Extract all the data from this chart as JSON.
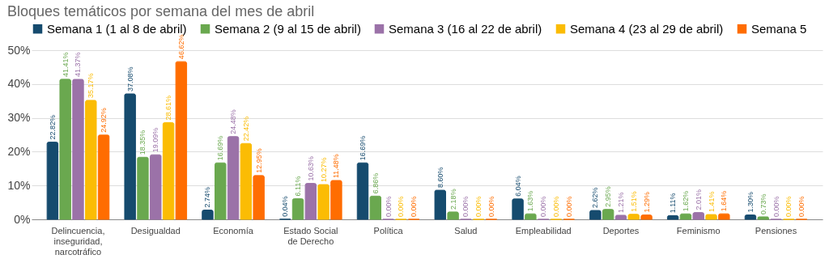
{
  "chart_data": {
    "type": "bar",
    "title": "Bloques temáticos por semana del mes de abril",
    "categories": [
      "Delincuencia, inseguridad, narcotráfico",
      "Desigualdad",
      "Economía",
      "Estado Social de Derecho",
      "Política",
      "Salud",
      "Empleabilidad",
      "Deportes",
      "Feminismo",
      "Pensiones"
    ],
    "series": [
      {
        "name": "Semana 1 (1 al 8 de abril)",
        "color": "#164b6e",
        "values": [
          22.82,
          37.08,
          2.74,
          0.04,
          16.69,
          8.6,
          6.04,
          2.62,
          1.11,
          1.3
        ],
        "value_labels": [
          "22.82%",
          "37.08%",
          "2.74%",
          "0.04%",
          "16.69%",
          "8.60%",
          "6.04%",
          "2.62%",
          "1.11%",
          "1.30%"
        ]
      },
      {
        "name": "Semana 2 (9 al 15 de abril)",
        "color": "#6aa84f",
        "values": [
          41.41,
          18.35,
          16.69,
          6.11,
          6.86,
          2.18,
          1.63,
          2.95,
          1.62,
          0.73
        ],
        "value_labels": [
          "41.41%",
          "18.35%",
          "16.69%",
          "6.11%",
          "6.86%",
          "2.18%",
          "1.63%",
          "2.95%",
          "1.62%",
          "0.73%"
        ]
      },
      {
        "name": "Semana 3 (16 al 22 de abril)",
        "color": "#9b72a8",
        "values": [
          41.37,
          19.09,
          24.48,
          10.63,
          0.0,
          0.0,
          0.0,
          1.21,
          2.01,
          0.0
        ],
        "value_labels": [
          "41.37%",
          "19.09%",
          "24.48%",
          "10.63%",
          "0.00%",
          "0.00%",
          "0.00%",
          "1.21%",
          "2.01%",
          "0.00%"
        ]
      },
      {
        "name": "Semana 4 (23 al 29 de abril)",
        "color": "#fbbc04",
        "values": [
          35.17,
          28.61,
          22.42,
          10.27,
          0.0,
          0.0,
          0.0,
          1.51,
          1.41,
          0.0
        ],
        "value_labels": [
          "35.17%",
          "28.61%",
          "22.42%",
          "10.27%",
          "0.00%",
          "0.00%",
          "0.00%",
          "1.51%",
          "1.41%",
          "0.00%"
        ]
      },
      {
        "name": "Semana 5",
        "color": "#ff6d01",
        "values": [
          24.92,
          46.62,
          12.95,
          11.48,
          0.0,
          0.0,
          0.0,
          1.29,
          1.64,
          0.0
        ],
        "value_labels": [
          "24.92%",
          "46.62%",
          "12.95%",
          "11.48%",
          "0.00%",
          "0.00%",
          "0.00%",
          "1.29%",
          "1.64%",
          "0.00%"
        ]
      }
    ],
    "ylim": [
      0,
      50
    ],
    "yticks": [
      {
        "value": 0,
        "label": "0%"
      },
      {
        "value": 10,
        "label": "10%"
      },
      {
        "value": 20,
        "label": "20%"
      },
      {
        "value": 30,
        "label": "30%"
      },
      {
        "value": 40,
        "label": "40%"
      },
      {
        "value": 50,
        "label": "50%"
      }
    ],
    "grid": "y",
    "legend": "top"
  }
}
